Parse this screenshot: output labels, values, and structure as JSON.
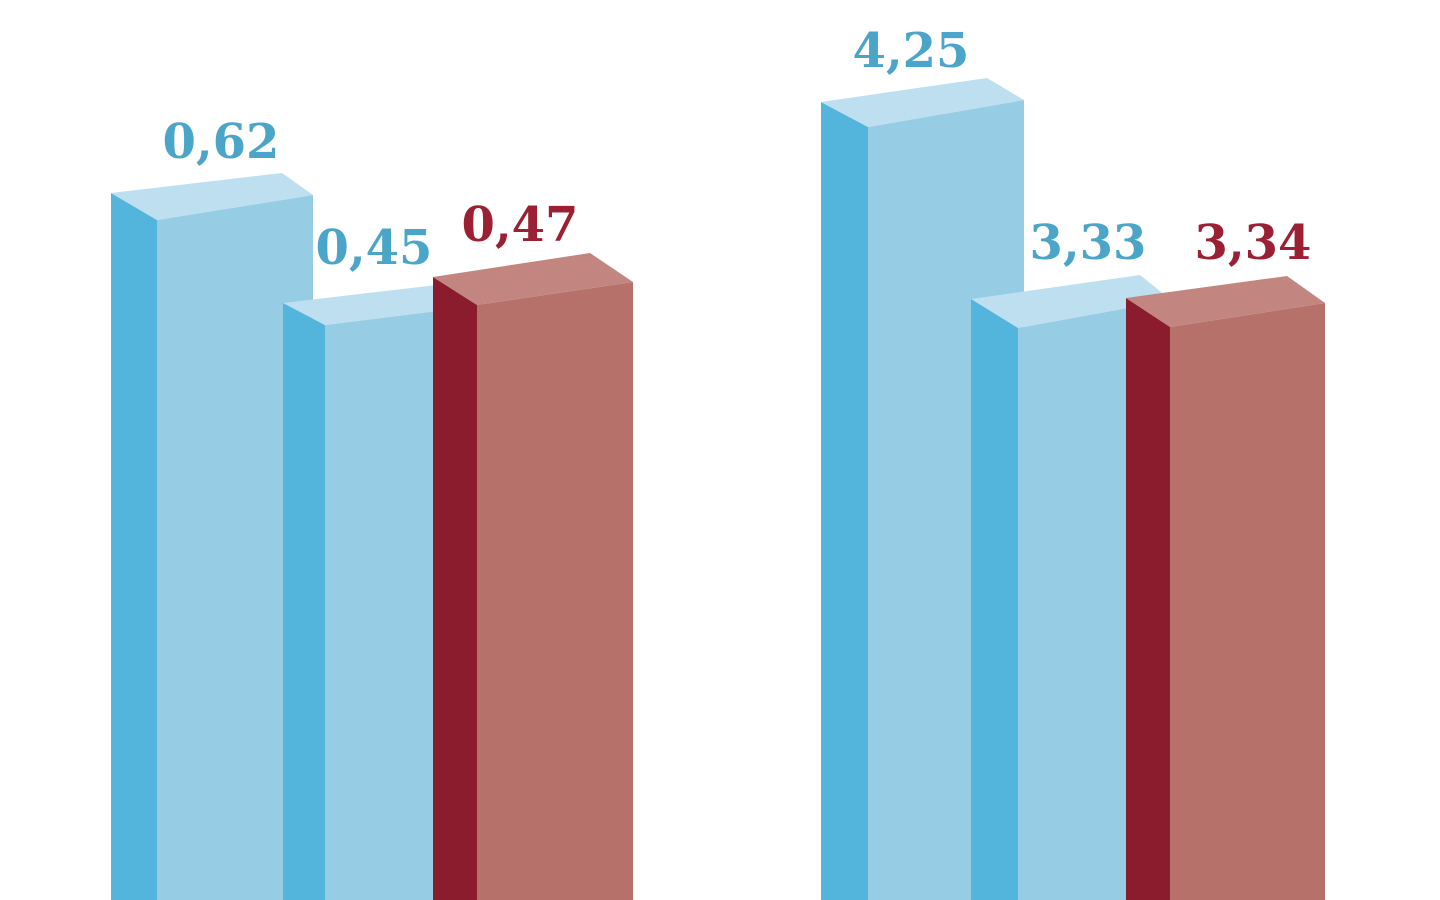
{
  "chart_data": {
    "type": "bar",
    "style": "3d",
    "title": "",
    "xlabel": "",
    "ylabel": "",
    "grid": false,
    "legend_position": "none",
    "background": "#ffffff",
    "decimal_format": "comma",
    "note": "Two groups of 3D bars, bottoms cropped by image edge; baseline not visible",
    "groups": [
      {
        "bars": [
          {
            "label": "0,62",
            "value": 0.62,
            "series": "blue"
          },
          {
            "label": "0,45",
            "value": 0.45,
            "series": "blue"
          },
          {
            "label": "0,47",
            "value": 0.47,
            "series": "red"
          }
        ]
      },
      {
        "bars": [
          {
            "label": "4,25",
            "value": 4.25,
            "series": "blue"
          },
          {
            "label": "3,33",
            "value": 3.33,
            "series": "blue"
          },
          {
            "label": "3,34",
            "value": 3.34,
            "series": "red"
          }
        ]
      }
    ],
    "series_colors": {
      "blue": {
        "front": "#97cce5",
        "side": "#53b5dc",
        "top": "#bddfef",
        "label": "#4aa5c9"
      },
      "red": {
        "front": "#b5716a",
        "side": "#8b1c2d",
        "top": "#c28580",
        "label": "#9b2033"
      }
    }
  }
}
